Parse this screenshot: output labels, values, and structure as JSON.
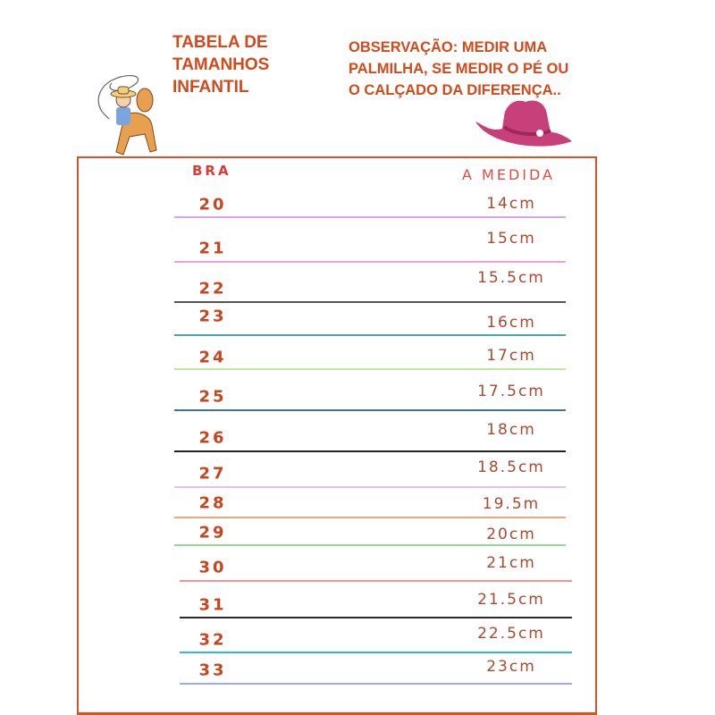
{
  "title": [
    "TABELA DE",
    "TAMANHOS",
    "INFANTIL"
  ],
  "note": [
    "OBSERVAÇÃO: MEDIR UMA",
    "PALMILHA, SE MEDIR O PÉ OU",
    "O CALÇADO DA DIFERENÇA.."
  ],
  "table": {
    "headers": {
      "bra": "BRA",
      "medida": "A MEDIDA"
    },
    "rows": [
      {
        "bra": "20",
        "medida": "14cm",
        "line_color": "#d9a6ea"
      },
      {
        "bra": "21",
        "medida": "15cm",
        "line_color": "#e8a4dc"
      },
      {
        "bra": "22",
        "medida": "15.5cm",
        "line_color": "#555555"
      },
      {
        "bra": "23",
        "medida": "16cm",
        "line_color": "#4aa8a8"
      },
      {
        "bra": "24",
        "medida": "17cm",
        "line_color": "#bde8a4"
      },
      {
        "bra": "25",
        "medida": "17.5cm",
        "line_color": "#3f7586"
      },
      {
        "bra": "26",
        "medida": "18cm",
        "line_color": "#222222"
      },
      {
        "bra": "27",
        "medida": "18.5cm",
        "line_color": "#ecc0ec"
      },
      {
        "bra": "28",
        "medida": "19.5m",
        "line_color": "#eaa57a"
      },
      {
        "bra": "29",
        "medida": "20cm",
        "line_color": "#92d890"
      },
      {
        "bra": "30",
        "medida": "21cm",
        "line_color": "#f09494"
      },
      {
        "bra": "31",
        "medida": "21.5cm",
        "line_color": "#2a2a2a"
      },
      {
        "bra": "32",
        "medida": "22.5cm",
        "line_color": "#2fb8d8"
      },
      {
        "bra": "33",
        "medida": "23cm",
        "line_color": "#a2a8ea"
      }
    ]
  },
  "icons": {
    "left": "cowboy-on-horse-illustration",
    "right": "pink-cowboy-hat-illustration"
  }
}
